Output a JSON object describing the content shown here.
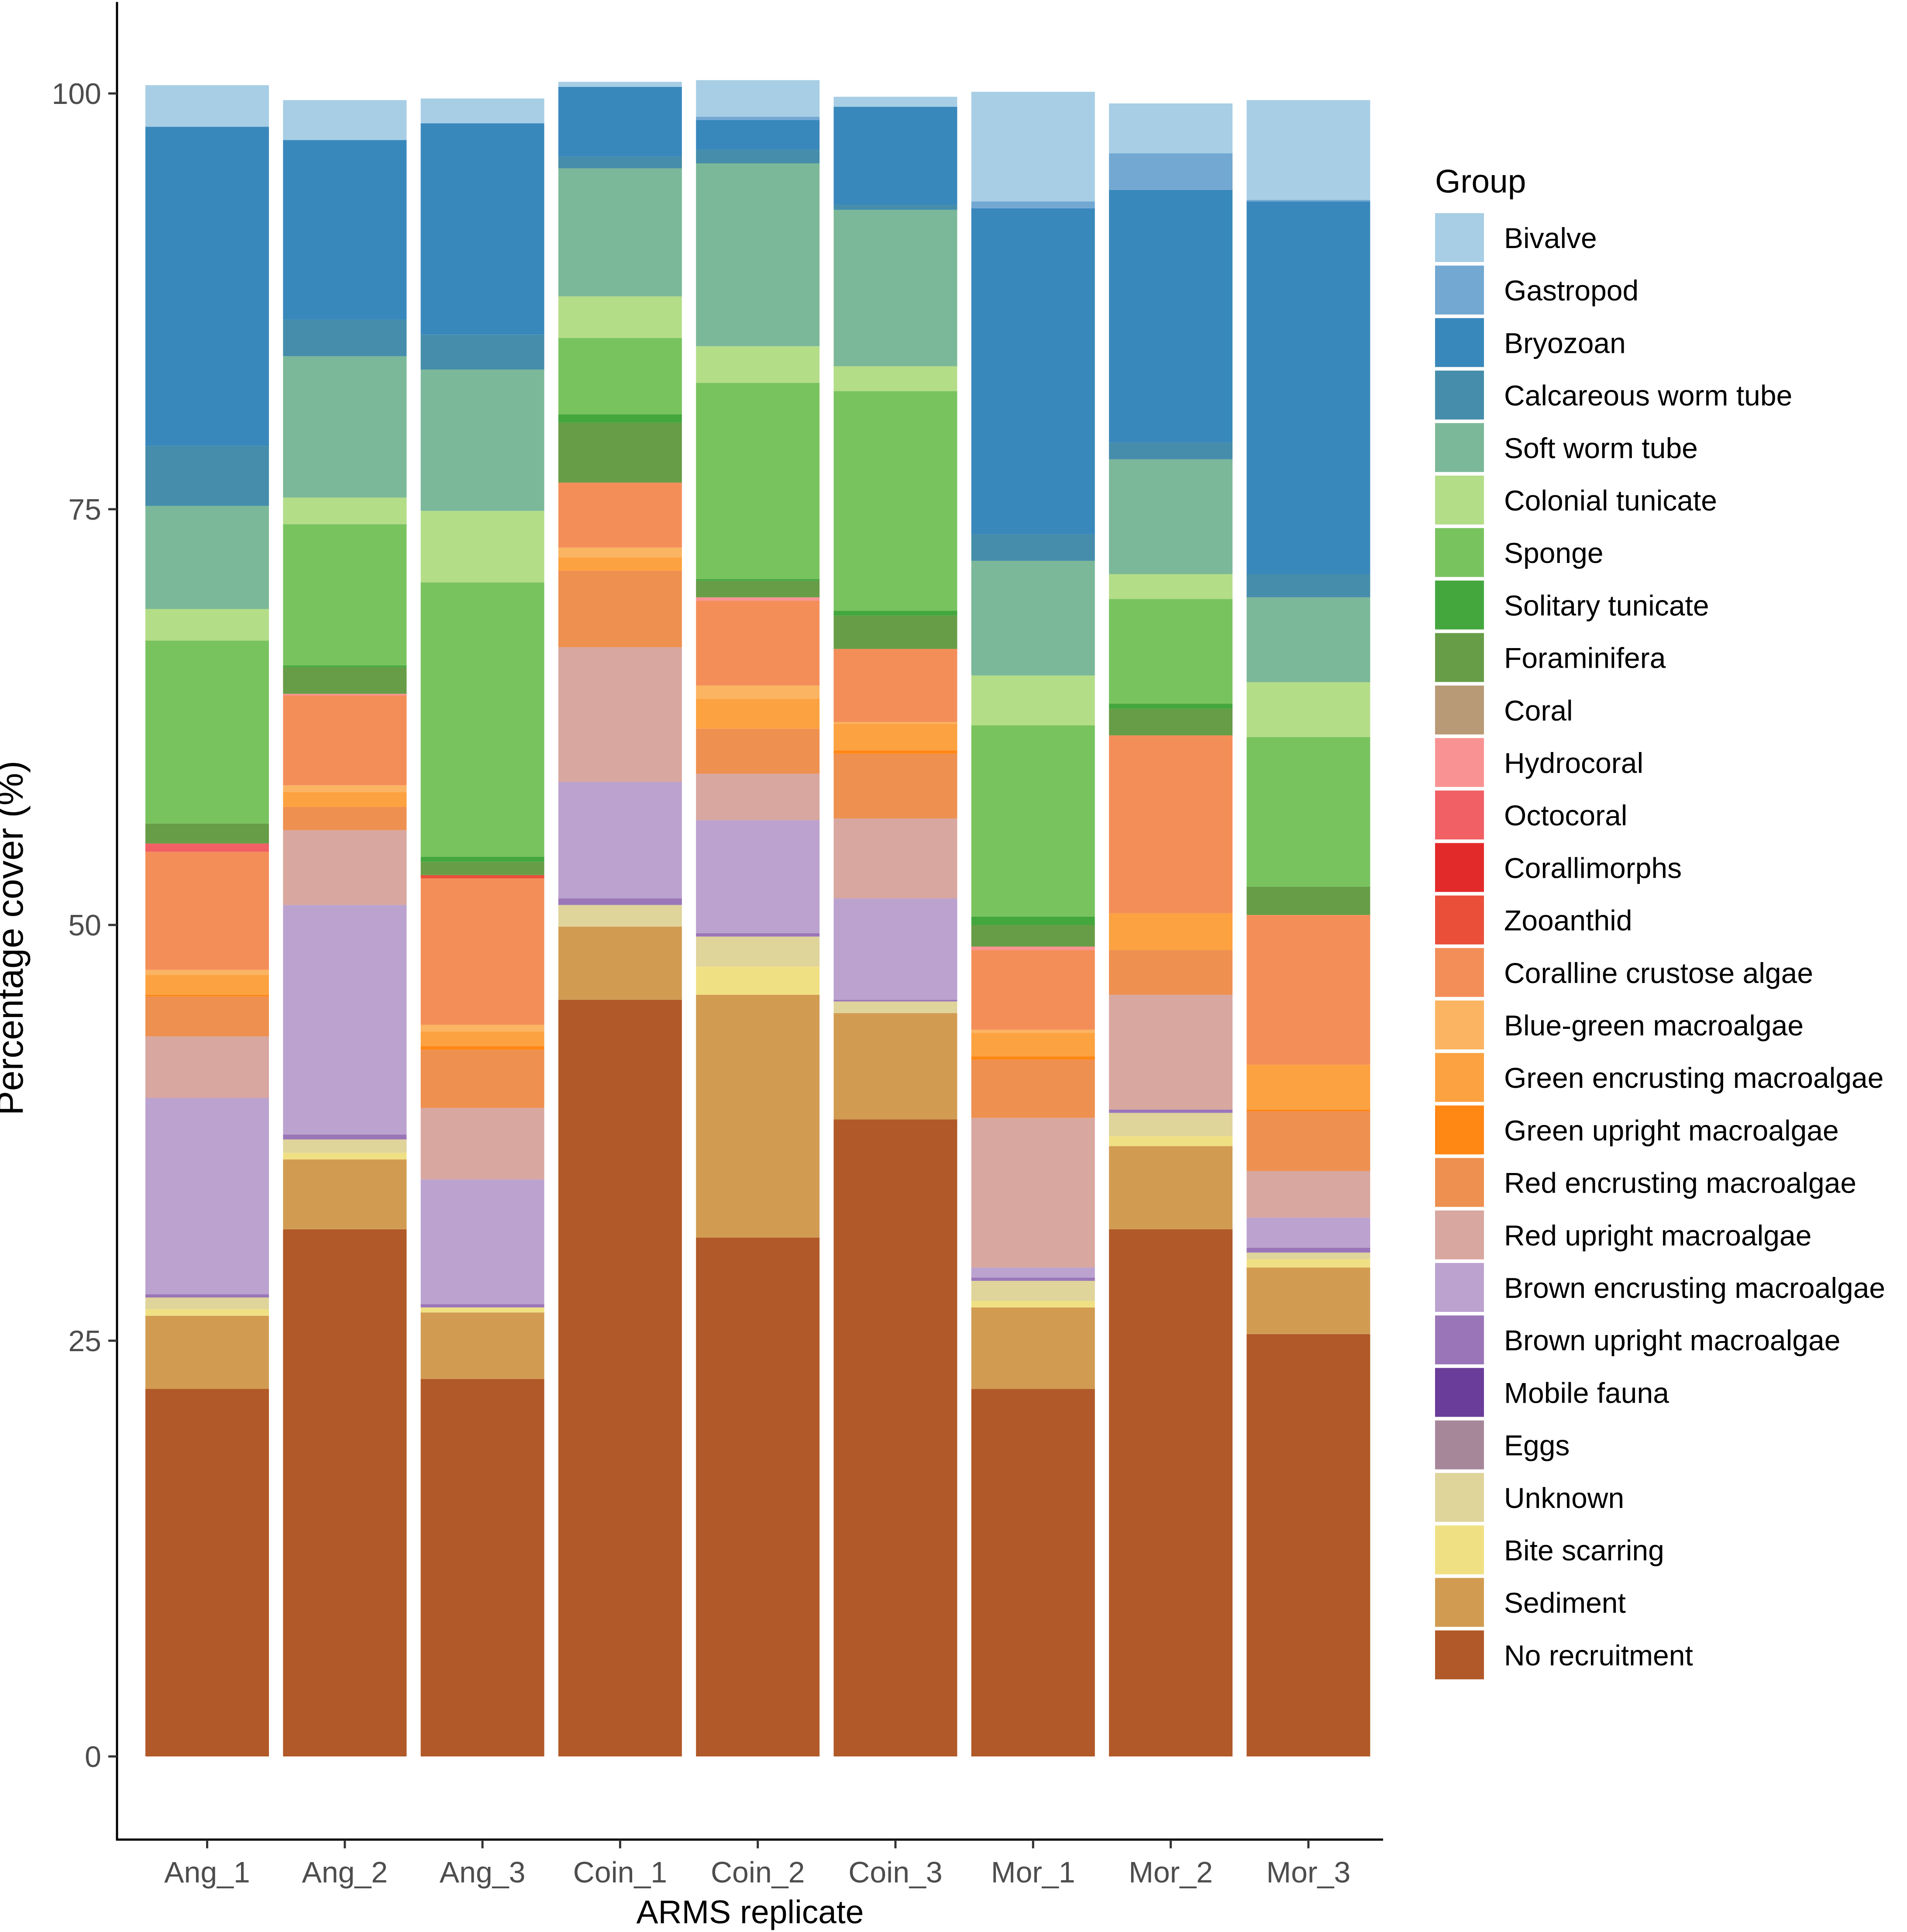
{
  "chart_data": {
    "type": "bar",
    "stacked": true,
    "title": "",
    "xlabel": "ARMS replicate",
    "ylabel": "Percentage cover (%)",
    "ylim": [
      -5,
      105.5
    ],
    "yticks": [
      0,
      25,
      50,
      75,
      100
    ],
    "legend_title": "Group",
    "legend_position": "right",
    "grid": false,
    "categories": [
      "Ang_1",
      "Ang_2",
      "Ang_3",
      "Coin_1",
      "Coin_2",
      "Coin_3",
      "Mor_1",
      "Mor_2",
      "Mor_3"
    ],
    "series": [
      {
        "name": "No recruitment",
        "color": "#B15928",
        "values": [
          22.1,
          31.7,
          22.7,
          45.5,
          31.2,
          38.3,
          22.1,
          31.7,
          25.4
        ]
      },
      {
        "name": "Sediment",
        "color": "#D19C52",
        "values": [
          4.4,
          4.2,
          4.0,
          4.4,
          14.6,
          6.4,
          4.9,
          5.0,
          4.0
        ]
      },
      {
        "name": "Bite scarring",
        "color": "#F0E084",
        "values": [
          0.4,
          0.4,
          0.3,
          0.0,
          1.7,
          0.0,
          0.4,
          0.6,
          0.5
        ]
      },
      {
        "name": "Unknown",
        "color": "#DFD49A",
        "values": [
          0.7,
          0.8,
          0.0,
          1.3,
          1.8,
          0.7,
          1.2,
          1.4,
          0.4
        ]
      },
      {
        "name": "Eggs",
        "color": "#A6879A",
        "values": [
          0.0,
          0.0,
          0.0,
          0.0,
          0.0,
          0.0,
          0.0,
          0.0,
          0.0
        ]
      },
      {
        "name": "Mobile fauna",
        "color": "#6A3D9A",
        "values": [
          0.0,
          0.0,
          0.0,
          0.0,
          0.0,
          0.0,
          0.0,
          0.0,
          0.0
        ]
      },
      {
        "name": "Brown upright macroalgae",
        "color": "#9A76B8",
        "values": [
          0.2,
          0.3,
          0.2,
          0.4,
          0.2,
          0.1,
          0.2,
          0.2,
          0.3
        ]
      },
      {
        "name": "Brown encrusting macroalgae",
        "color": "#BBA2CF",
        "values": [
          11.8,
          13.8,
          7.5,
          7.0,
          6.8,
          6.1,
          0.6,
          0.0,
          1.8
        ]
      },
      {
        "name": "Red upright macroalgae",
        "color": "#D8A7A0",
        "values": [
          3.7,
          4.5,
          4.3,
          8.1,
          2.8,
          4.8,
          9.0,
          6.9,
          2.8
        ]
      },
      {
        "name": "Red encrusting macroalgae",
        "color": "#EE9050",
        "values": [
          2.4,
          1.4,
          3.5,
          4.6,
          2.7,
          3.9,
          3.5,
          2.7,
          3.6
        ]
      },
      {
        "name": "Green upright macroalgae",
        "color": "#FF8714",
        "values": [
          0.1,
          0.0,
          0.2,
          0.0,
          0.0,
          0.2,
          0.2,
          0.0,
          0.1
        ]
      },
      {
        "name": "Green encrusting macroalgae",
        "color": "#FDA240",
        "values": [
          1.2,
          0.9,
          0.9,
          0.8,
          1.8,
          1.6,
          1.4,
          2.2,
          2.7
        ]
      },
      {
        "name": "Blue-green macroalgae",
        "color": "#FBB462",
        "values": [
          0.3,
          0.4,
          0.4,
          0.6,
          0.8,
          0.1,
          0.2,
          0.0,
          0.0
        ]
      },
      {
        "name": "Coralline crustose algae",
        "color": "#F48E59",
        "values": [
          7.1,
          5.4,
          8.8,
          3.9,
          5.1,
          4.4,
          4.8,
          10.7,
          9.0
        ]
      },
      {
        "name": "Zooanthid",
        "color": "#EA4F3A",
        "values": [
          0.0,
          0.0,
          0.2,
          0.0,
          0.0,
          0.0,
          0.0,
          0.0,
          0.0
        ]
      },
      {
        "name": "Corallimorphs",
        "color": "#E32A2A",
        "values": [
          0.0,
          0.0,
          0.0,
          0.0,
          0.0,
          0.0,
          0.0,
          0.0,
          0.0
        ]
      },
      {
        "name": "Octocoral",
        "color": "#F06065",
        "values": [
          0.5,
          0.0,
          0.0,
          0.0,
          0.0,
          0.0,
          0.0,
          0.0,
          0.0
        ]
      },
      {
        "name": "Hydrocoral",
        "color": "#F99393",
        "values": [
          0.0,
          0.1,
          0.0,
          0.0,
          0.2,
          0.0,
          0.2,
          0.0,
          0.0
        ]
      },
      {
        "name": "Coral",
        "color": "#B99A76",
        "values": [
          0.0,
          0.0,
          0.0,
          0.0,
          0.0,
          0.0,
          0.0,
          0.0,
          0.0
        ]
      },
      {
        "name": "Foraminifera",
        "color": "#679D47",
        "values": [
          1.2,
          1.6,
          0.8,
          3.6,
          1.0,
          2.0,
          1.3,
          1.6,
          1.7
        ]
      },
      {
        "name": "Solitary tunicate",
        "color": "#44A73E",
        "values": [
          0.0,
          0.1,
          0.3,
          0.5,
          0.1,
          0.3,
          0.5,
          0.3,
          0.0
        ]
      },
      {
        "name": "Sponge",
        "color": "#79C35F",
        "values": [
          11.0,
          8.5,
          16.5,
          4.6,
          11.8,
          13.2,
          11.5,
          6.3,
          9.0
        ]
      },
      {
        "name": "Colonial tunicate",
        "color": "#B4DD88",
        "values": [
          1.9,
          1.6,
          4.3,
          2.5,
          2.2,
          1.5,
          3.0,
          1.5,
          3.3
        ]
      },
      {
        "name": "Soft worm tube",
        "color": "#7BB899",
        "values": [
          6.2,
          8.5,
          8.5,
          7.7,
          11.0,
          9.4,
          6.9,
          6.9,
          5.1
        ]
      },
      {
        "name": "Calcareous worm tube",
        "color": "#458DAB",
        "values": [
          3.6,
          2.2,
          2.1,
          0.7,
          0.8,
          0.3,
          1.6,
          1.0,
          1.4
        ]
      },
      {
        "name": "Bryozoan",
        "color": "#3988BC",
        "values": [
          19.2,
          10.8,
          12.7,
          4.2,
          1.8,
          5.9,
          19.6,
          15.2,
          22.4
        ]
      },
      {
        "name": "Gastropod",
        "color": "#72A8D2",
        "values": [
          0.0,
          0.0,
          0.0,
          0.0,
          0.2,
          0.0,
          0.4,
          2.2,
          0.1
        ]
      },
      {
        "name": "Bivalve",
        "color": "#A7CEE5",
        "values": [
          2.5,
          2.4,
          1.5,
          0.3,
          2.2,
          0.6,
          6.6,
          3.0,
          6.0
        ]
      }
    ]
  }
}
